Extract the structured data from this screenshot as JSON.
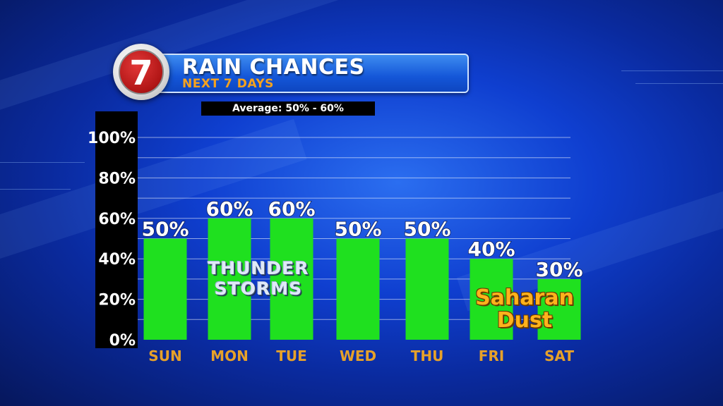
{
  "header": {
    "logo_number": "7",
    "title": "RAIN CHANCES",
    "subtitle": "NEXT 7 DAYS",
    "average": "Average: 50% - 60%"
  },
  "annotations": {
    "thunderstorms_line1": "THUNDER",
    "thunderstorms_line2": "STORMS",
    "saharan_line1": "Saharan",
    "saharan_line2": "Dust"
  },
  "colors": {
    "bar": "#1fe01f",
    "subtitle": "#f6a21e",
    "day_label": "#e6a12a",
    "saharan_text": "#ffb21c"
  },
  "chart_data": {
    "type": "bar",
    "title": "RAIN CHANCES",
    "subtitle": "NEXT 7 DAYS",
    "categories": [
      "SUN",
      "MON",
      "TUE",
      "WED",
      "THU",
      "FRI",
      "SAT"
    ],
    "values": [
      50,
      60,
      60,
      50,
      50,
      40,
      30
    ],
    "data_labels": [
      "50%",
      "60%",
      "60%",
      "50%",
      "50%",
      "40%",
      "30%"
    ],
    "y_ticks": [
      0,
      20,
      40,
      60,
      80,
      100
    ],
    "y_tick_labels": [
      "0%",
      "20%",
      "40%",
      "60%",
      "80%",
      "100%"
    ],
    "ylim": [
      0,
      100
    ],
    "grid": true,
    "xlabel": "",
    "ylabel": ""
  }
}
